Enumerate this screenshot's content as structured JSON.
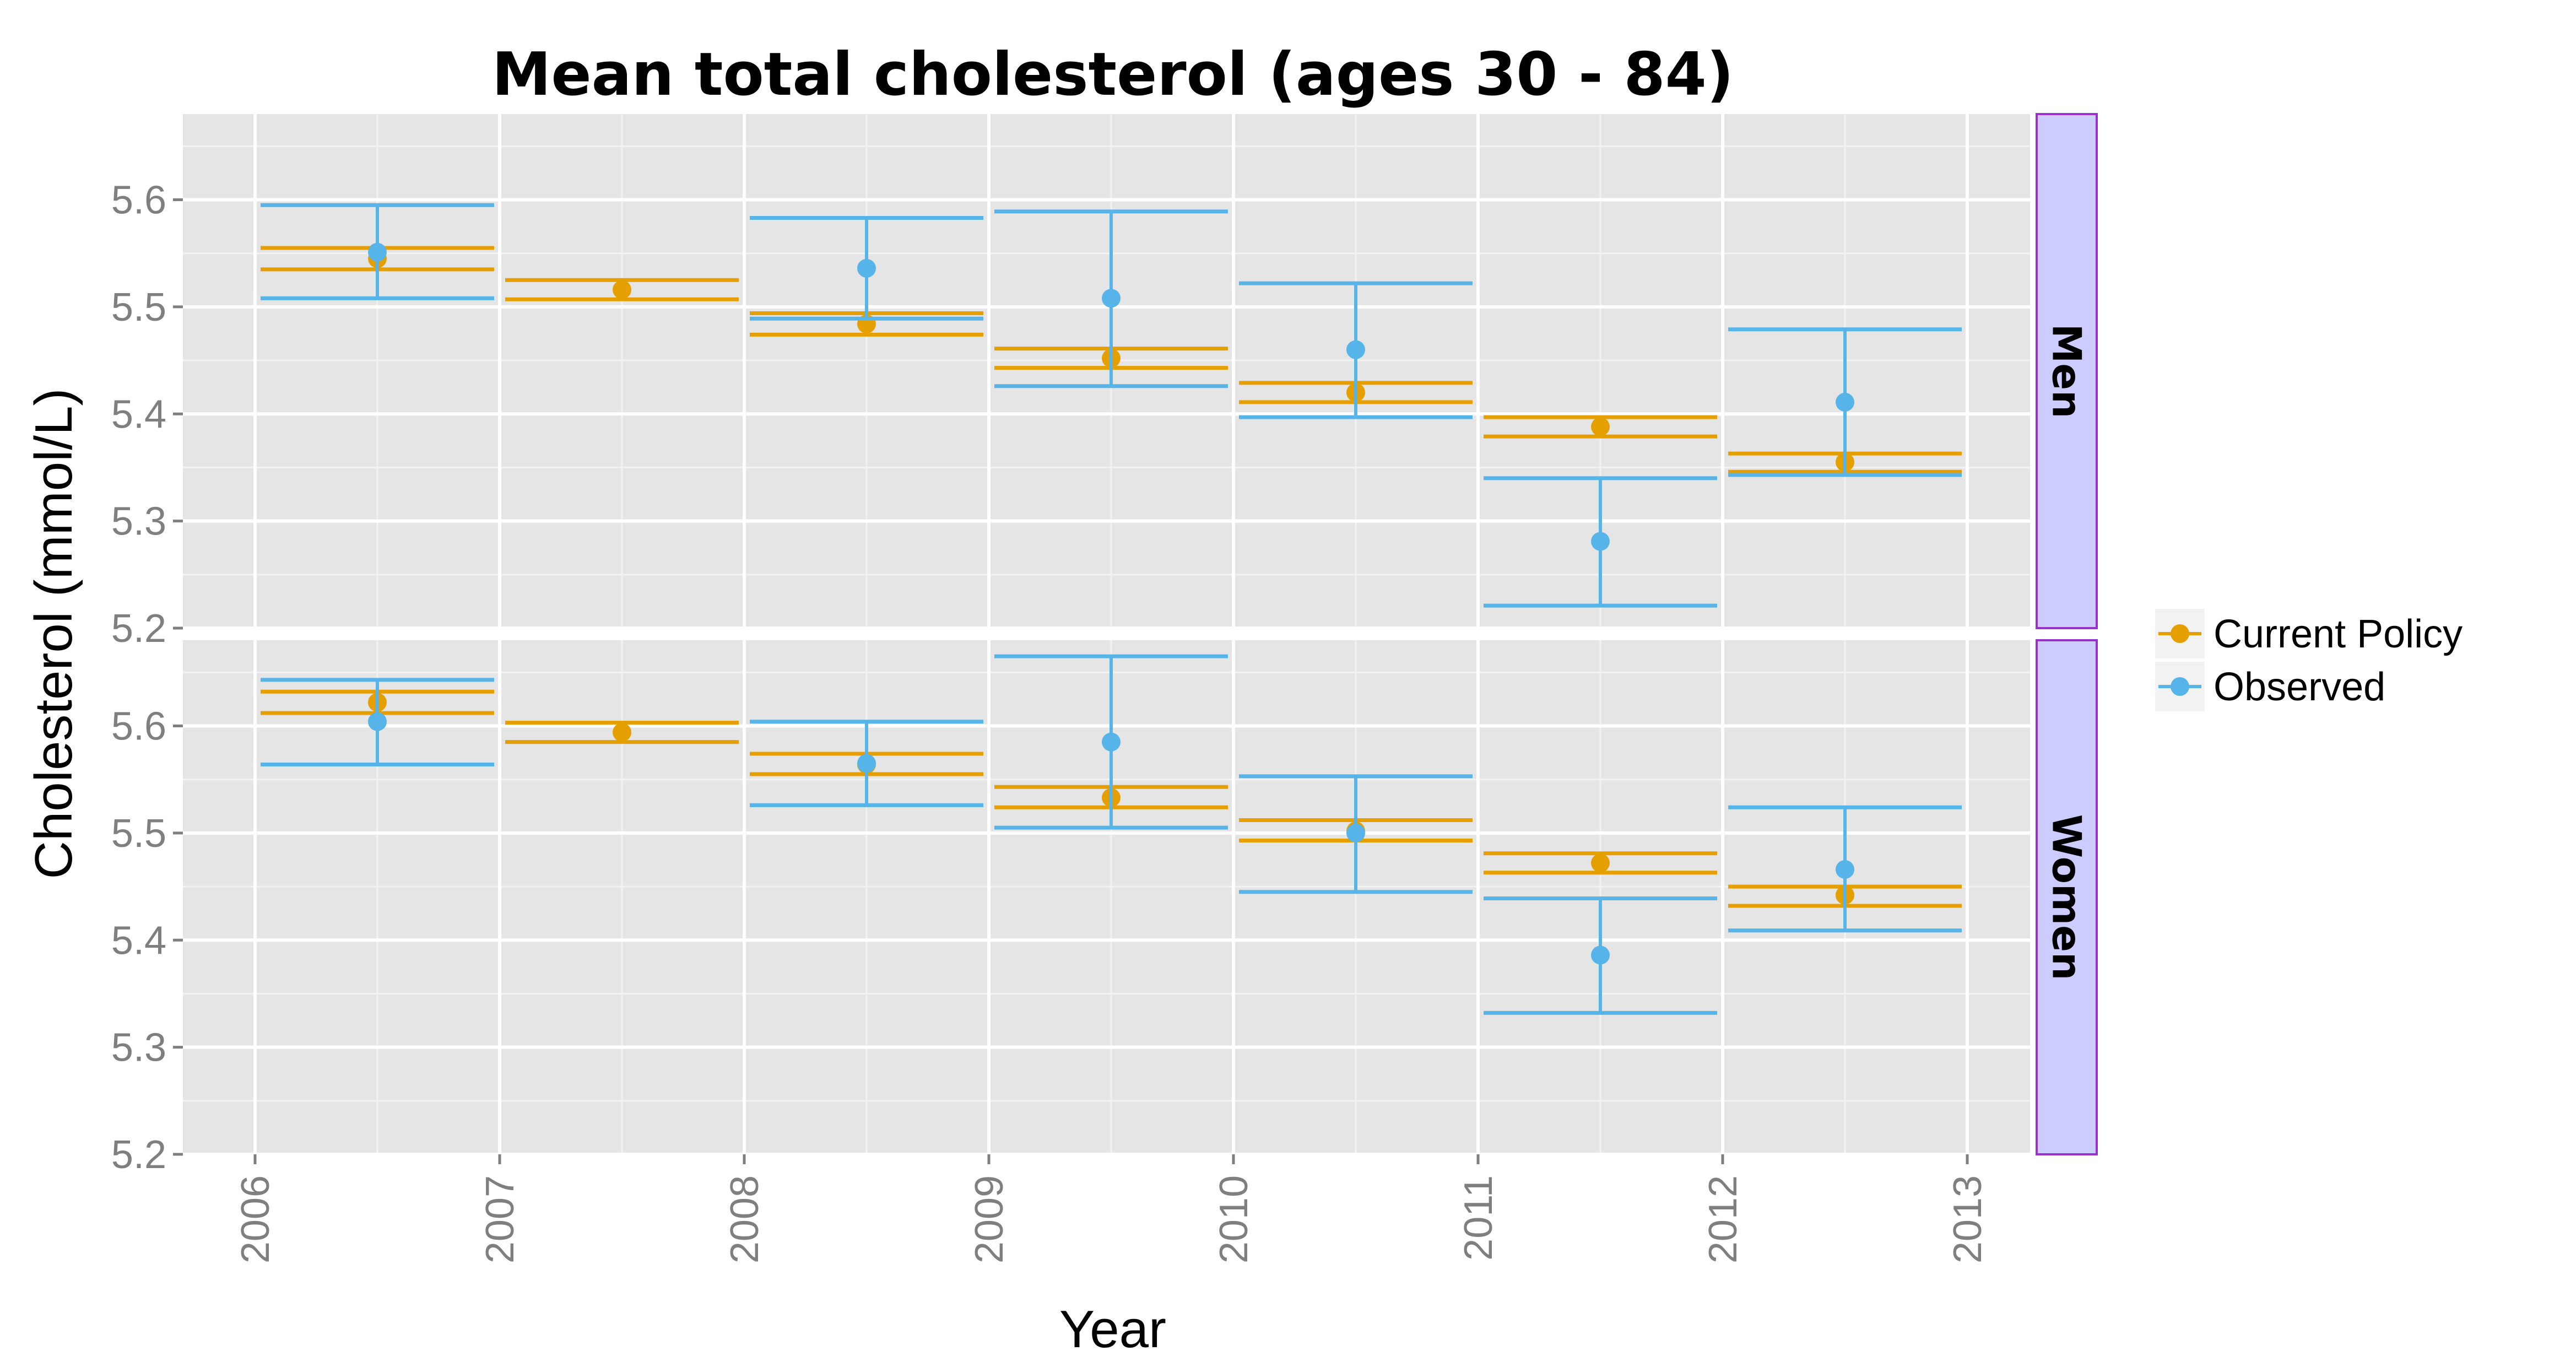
{
  "chart_data": {
    "type": "scatter",
    "title": "Mean total cholesterol (ages 30 - 84)",
    "xlabel": "Year",
    "ylabel": "Cholesterol (mmol/L)",
    "x_ticks": [
      "2006",
      "2007",
      "2008",
      "2009",
      "2010",
      "2011",
      "2012",
      "2013"
    ],
    "xlim": [
      2006,
      2013
    ],
    "x_category_centers": [
      2006.5,
      2007.5,
      2008.5,
      2009.5,
      2010.5,
      2011.5,
      2012.5
    ],
    "y_ticks": [
      "5.2",
      "5.3",
      "5.4",
      "5.5",
      "5.6"
    ],
    "ylim": [
      5.2,
      5.68
    ],
    "grid": true,
    "legend_position": "right",
    "colors": {
      "Current Policy": "#e69f00",
      "Observed": "#56b4e9"
    },
    "panels": [
      {
        "label": "Men",
        "series": [
          {
            "name": "Current Policy",
            "points": [
              {
                "x": 2006.5,
                "y": 5.545,
                "lower": 5.535,
                "upper": 5.555
              },
              {
                "x": 2007.5,
                "y": 5.516,
                "lower": 5.507,
                "upper": 5.525
              },
              {
                "x": 2008.5,
                "y": 5.484,
                "lower": 5.474,
                "upper": 5.494
              },
              {
                "x": 2009.5,
                "y": 5.452,
                "lower": 5.443,
                "upper": 5.461
              },
              {
                "x": 2010.5,
                "y": 5.42,
                "lower": 5.411,
                "upper": 5.429
              },
              {
                "x": 2011.5,
                "y": 5.388,
                "lower": 5.379,
                "upper": 5.397
              },
              {
                "x": 2012.5,
                "y": 5.355,
                "lower": 5.346,
                "upper": 5.363
              }
            ]
          },
          {
            "name": "Observed",
            "points": [
              {
                "x": 2006.5,
                "y": 5.551,
                "lower": 5.508,
                "upper": 5.595
              },
              {
                "x": 2008.5,
                "y": 5.536,
                "lower": 5.489,
                "upper": 5.583
              },
              {
                "x": 2009.5,
                "y": 5.508,
                "lower": 5.426,
                "upper": 5.589
              },
              {
                "x": 2010.5,
                "y": 5.46,
                "lower": 5.397,
                "upper": 5.522
              },
              {
                "x": 2011.5,
                "y": 5.281,
                "lower": 5.221,
                "upper": 5.34
              },
              {
                "x": 2012.5,
                "y": 5.411,
                "lower": 5.343,
                "upper": 5.479
              }
            ]
          }
        ]
      },
      {
        "label": "Women",
        "series": [
          {
            "name": "Current Policy",
            "points": [
              {
                "x": 2006.5,
                "y": 5.622,
                "lower": 5.612,
                "upper": 5.632
              },
              {
                "x": 2007.5,
                "y": 5.594,
                "lower": 5.585,
                "upper": 5.603
              },
              {
                "x": 2008.5,
                "y": 5.564,
                "lower": 5.555,
                "upper": 5.574
              },
              {
                "x": 2009.5,
                "y": 5.533,
                "lower": 5.524,
                "upper": 5.543
              },
              {
                "x": 2010.5,
                "y": 5.502,
                "lower": 5.493,
                "upper": 5.512
              },
              {
                "x": 2011.5,
                "y": 5.472,
                "lower": 5.463,
                "upper": 5.481
              },
              {
                "x": 2012.5,
                "y": 5.442,
                "lower": 5.432,
                "upper": 5.45
              }
            ]
          },
          {
            "name": "Observed",
            "points": [
              {
                "x": 2006.5,
                "y": 5.604,
                "lower": 5.564,
                "upper": 5.643
              },
              {
                "x": 2008.5,
                "y": 5.565,
                "lower": 5.526,
                "upper": 5.604
              },
              {
                "x": 2009.5,
                "y": 5.585,
                "lower": 5.505,
                "upper": 5.665
              },
              {
                "x": 2010.5,
                "y": 5.5,
                "lower": 5.445,
                "upper": 5.553
              },
              {
                "x": 2011.5,
                "y": 5.386,
                "lower": 5.332,
                "upper": 5.439
              },
              {
                "x": 2012.5,
                "y": 5.466,
                "lower": 5.409,
                "upper": 5.524
              }
            ]
          }
        ]
      }
    ],
    "legend": [
      {
        "name": "Current Policy",
        "label": "Current Policy"
      },
      {
        "name": "Observed",
        "label": "Observed"
      }
    ]
  }
}
